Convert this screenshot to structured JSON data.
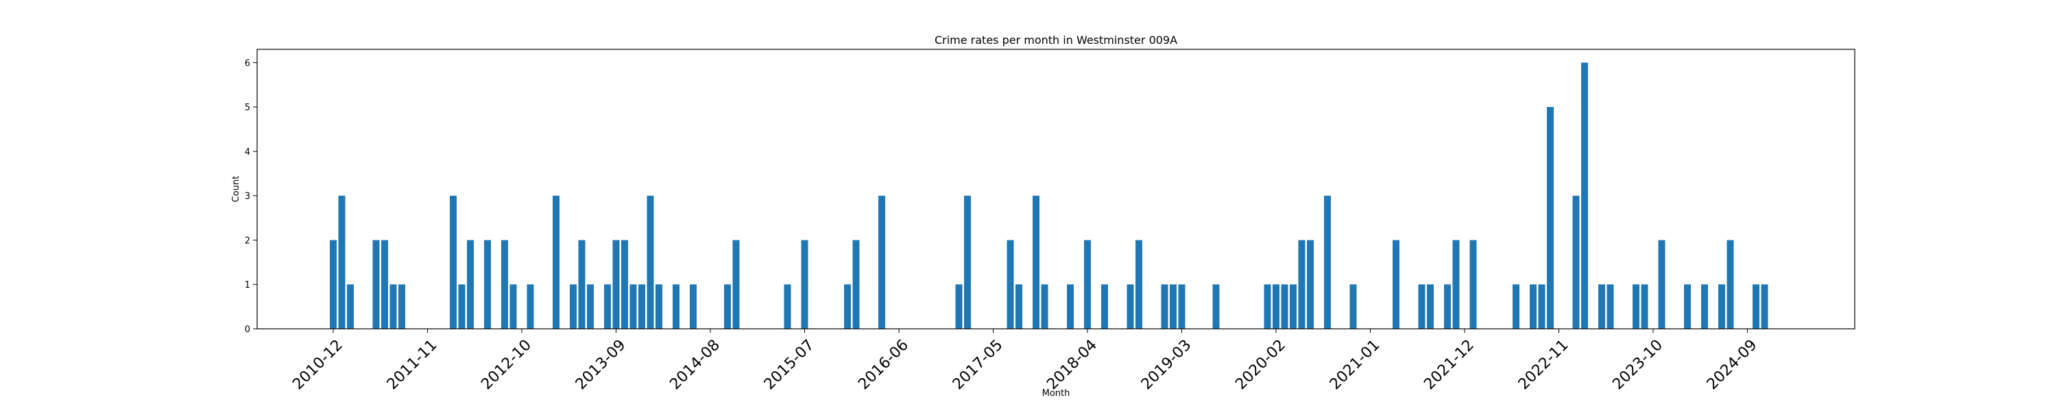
{
  "chart_data": {
    "type": "bar",
    "title": "Crime rates per month in Westminster 009A",
    "xlabel": "Month",
    "ylabel": "Count",
    "ylim": [
      0,
      6.3
    ],
    "yticks": [
      0,
      1,
      2,
      3,
      4,
      5,
      6
    ],
    "x_tick_labels": [
      "2010-12",
      "2011-11",
      "2012-10",
      "2013-09",
      "2014-08",
      "2015-07",
      "2016-06",
      "2017-05",
      "2018-04",
      "2019-03",
      "2020-02",
      "2021-01",
      "2021-12",
      "2022-11",
      "2023-10",
      "2024-09"
    ],
    "bar_color": "#1f77b4",
    "grid": false,
    "categories": [
      "2010-12",
      "2011-01",
      "2011-02",
      "2011-05",
      "2011-06",
      "2011-07",
      "2011-08",
      "2012-02",
      "2012-03",
      "2012-04",
      "2012-06",
      "2012-08",
      "2012-09",
      "2012-11",
      "2013-02",
      "2013-04",
      "2013-05",
      "2013-06",
      "2013-08",
      "2013-09",
      "2013-10",
      "2013-11",
      "2013-12",
      "2014-01",
      "2014-02",
      "2014-04",
      "2014-06",
      "2014-10",
      "2014-11",
      "2015-05",
      "2015-07",
      "2015-12",
      "2016-01",
      "2016-04",
      "2017-01",
      "2017-02",
      "2017-07",
      "2017-08",
      "2017-10",
      "2017-11",
      "2018-02",
      "2018-04",
      "2018-06",
      "2018-09",
      "2018-10",
      "2019-01",
      "2019-02",
      "2019-03",
      "2019-07",
      "2020-01",
      "2020-02",
      "2020-03",
      "2020-04",
      "2020-05",
      "2020-06",
      "2020-08",
      "2020-11",
      "2021-04",
      "2021-07",
      "2021-08",
      "2021-10",
      "2021-11",
      "2022-01",
      "2022-06",
      "2022-08",
      "2022-09",
      "2022-10",
      "2023-01",
      "2023-02",
      "2023-04",
      "2023-05",
      "2023-08",
      "2023-09",
      "2023-11",
      "2024-02",
      "2024-04",
      "2024-06",
      "2024-07",
      "2024-10",
      "2024-11"
    ],
    "values": [
      2,
      3,
      1,
      2,
      2,
      1,
      1,
      3,
      1,
      2,
      2,
      2,
      1,
      1,
      3,
      1,
      2,
      1,
      1,
      2,
      2,
      1,
      1,
      3,
      1,
      1,
      1,
      1,
      2,
      1,
      2,
      1,
      2,
      3,
      1,
      3,
      2,
      1,
      3,
      1,
      1,
      2,
      1,
      1,
      2,
      1,
      1,
      1,
      1,
      1,
      1,
      1,
      1,
      2,
      2,
      3,
      1,
      2,
      1,
      1,
      1,
      2,
      2,
      1,
      1,
      1,
      5,
      3,
      6,
      1,
      1,
      1,
      1,
      2,
      1,
      1,
      1,
      2,
      1,
      1
    ]
  }
}
